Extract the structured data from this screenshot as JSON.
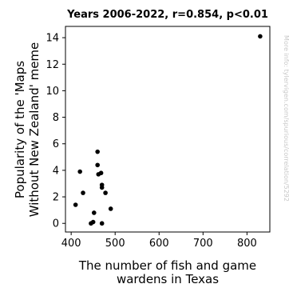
{
  "chart_data": {
    "type": "scatter",
    "title": "Years 2006-2022, r=0.854, p<0.01",
    "xlabel_lines": [
      "The number of fish and game",
      "wardens in Texas"
    ],
    "ylabel_lines": [
      "Popularity of the 'Maps",
      "Without New Zealand' meme"
    ],
    "xlim": [
      387,
      852
    ],
    "ylim": [
      -0.65,
      14.85
    ],
    "xticks": [
      400,
      500,
      600,
      700,
      800
    ],
    "yticks": [
      0,
      2,
      4,
      6,
      8,
      10,
      12,
      14
    ],
    "grid": false,
    "marker_color": "#000000",
    "points": [
      {
        "x": 410,
        "y": 1.4
      },
      {
        "x": 420,
        "y": 3.9
      },
      {
        "x": 427,
        "y": 2.3
      },
      {
        "x": 445,
        "y": 0.0
      },
      {
        "x": 450,
        "y": 0.1
      },
      {
        "x": 452,
        "y": 0.8
      },
      {
        "x": 460,
        "y": 5.4
      },
      {
        "x": 460,
        "y": 4.4
      },
      {
        "x": 462,
        "y": 3.7
      },
      {
        "x": 468,
        "y": 3.8
      },
      {
        "x": 470,
        "y": 2.9
      },
      {
        "x": 470,
        "y": 2.7
      },
      {
        "x": 470,
        "y": 0.0
      },
      {
        "x": 478,
        "y": 2.3
      },
      {
        "x": 490,
        "y": 1.1
      },
      {
        "x": 830,
        "y": 14.1
      }
    ]
  },
  "watermark": "More info: tylervigen.com/spurious/correlation/5292"
}
